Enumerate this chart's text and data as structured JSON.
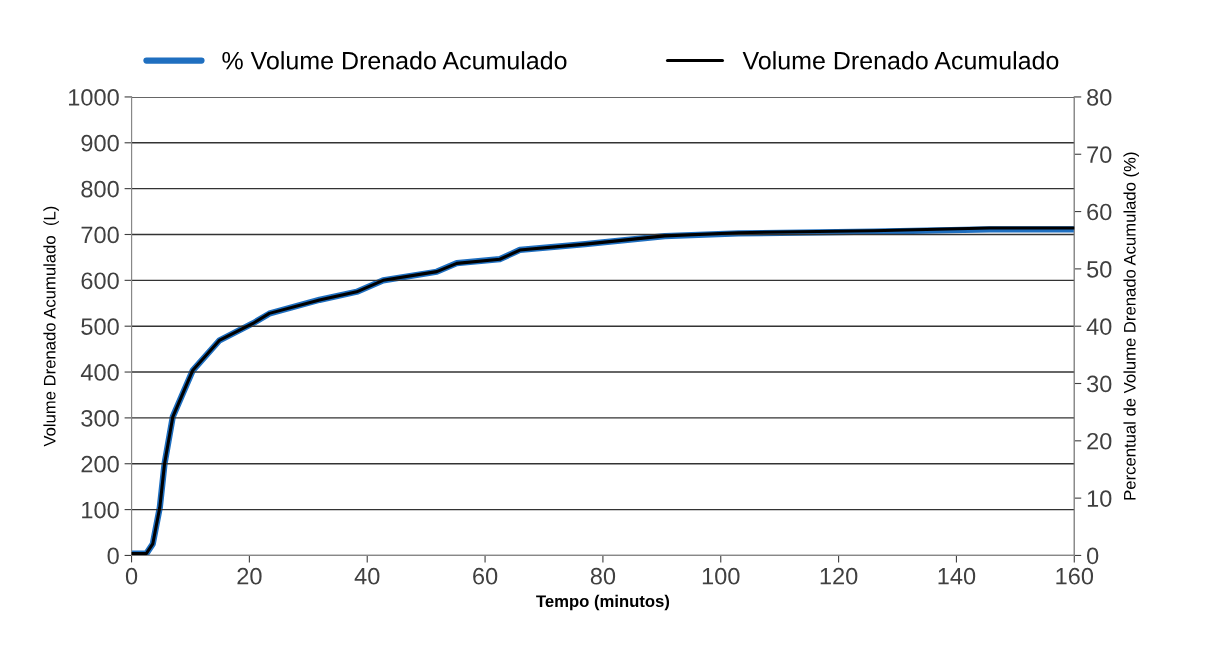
{
  "chart_data": {
    "type": "line",
    "xlabel": "Tempo (minutos)",
    "ylabel": "Volume Drenado Acumulado  (L)",
    "y2label": "Percentual de Volume Drenado Acumulado (%)",
    "x": [
      0,
      2.5,
      3.6,
      4.8,
      5.6,
      7.0,
      10.4,
      14.9,
      20.6,
      23.4,
      31.9,
      38.2,
      42.7,
      51.8,
      55.2,
      62.5,
      65.9,
      77,
      90.5,
      103,
      126,
      145.6,
      160
    ],
    "series": [
      {
        "name": "% Volume Drenado Acumulado",
        "color": "#1f6fc0",
        "axis": "y2",
        "values": [
          0.3,
          0.3,
          2.0,
          8.4,
          16.0,
          24.2,
          32.3,
          37.5,
          40.5,
          42.2,
          44.6,
          46.0,
          48.0,
          49.5,
          51.0,
          51.7,
          53.3,
          54.3,
          55.7,
          56.2,
          56.5,
          56.9,
          56.9
        ]
      },
      {
        "name": "Volume Drenado Acumulado",
        "color": "#000000",
        "values": [
          4,
          4,
          25,
          105,
          200,
          302,
          404,
          469,
          506,
          528,
          557,
          575,
          600,
          619,
          637,
          646,
          666,
          679,
          697,
          704,
          708,
          714,
          714
        ]
      }
    ],
    "xlim": [
      0,
      160
    ],
    "xticks": [
      0,
      20,
      40,
      60,
      80,
      100,
      120,
      140,
      160
    ],
    "ylim": [
      0,
      1000
    ],
    "yticks": [
      0,
      100,
      200,
      300,
      400,
      500,
      600,
      700,
      800,
      900,
      1000
    ],
    "y2lim": [
      0,
      80
    ],
    "y2ticks": [
      0,
      10,
      20,
      30,
      40,
      50,
      60,
      70,
      80
    ],
    "grid": "y",
    "legend": "top",
    "marker": "none",
    "line_style": "solid"
  }
}
